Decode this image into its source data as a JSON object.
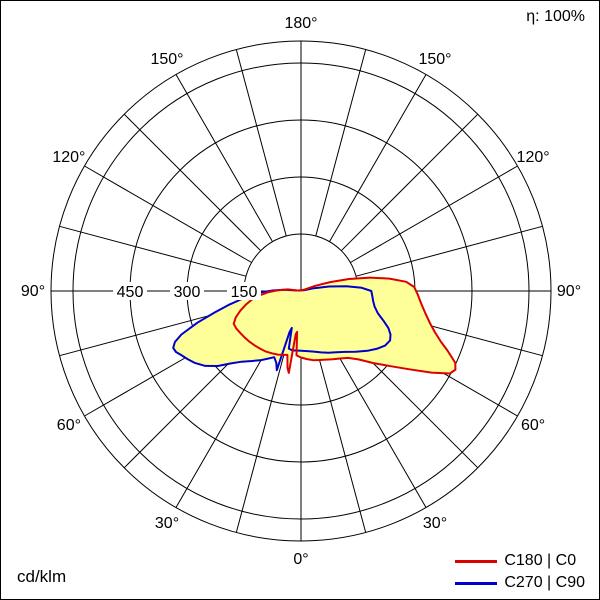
{
  "meta": {
    "efficiency_label": "η: 100%",
    "unit_label": "cd/klm"
  },
  "legend": {
    "entries": [
      {
        "label": "C180 | C0",
        "color": "#dd0000"
      },
      {
        "label": "C270 | C90",
        "color": "#0000cc"
      }
    ]
  },
  "chart_data": {
    "type": "polar_luminous_intensity",
    "title": "Luminous intensity distribution curve (polar)",
    "unit": "cd/klm",
    "efficiency": "100%",
    "angle_label_step_deg": 30,
    "angle_tick_step_deg": 15,
    "angle_labels": [
      "0°",
      "30°",
      "60°",
      "90°",
      "120°",
      "150°",
      "180°"
    ],
    "radial_ticks": [
      150,
      300,
      450,
      600
    ],
    "radial_tick_labels": [
      "150",
      "300",
      "450"
    ],
    "grid_color": "#000000",
    "fill_color": "#ffff99",
    "point_format": "[gamma_deg, cd_per_klm] (0 = nadir, negative = left half, positive = right half)",
    "series": [
      {
        "name": "C180 | C0",
        "color": "#dd0000",
        "points": [
          [
            -102,
            5
          ],
          [
            -97,
            35
          ],
          [
            -92,
            60
          ],
          [
            -88,
            85
          ],
          [
            -84,
            110
          ],
          [
            -80,
            132
          ],
          [
            -76,
            150
          ],
          [
            -72,
            168
          ],
          [
            -68,
            185
          ],
          [
            -64,
            197
          ],
          [
            -60,
            197
          ],
          [
            -55,
            194
          ],
          [
            -50,
            192
          ],
          [
            -45,
            190
          ],
          [
            -40,
            188
          ],
          [
            -35,
            186
          ],
          [
            -30,
            184
          ],
          [
            -25,
            181
          ],
          [
            -20,
            178
          ],
          [
            -16,
            175
          ],
          [
            -12,
            172
          ],
          [
            -10,
            205
          ],
          [
            -8.5,
            218
          ],
          [
            -7,
            115
          ],
          [
            -5.5,
            108
          ],
          [
            -4,
            170
          ],
          [
            0,
            175
          ],
          [
            5,
            180
          ],
          [
            10,
            185
          ],
          [
            15,
            188
          ],
          [
            20,
            192
          ],
          [
            25,
            198
          ],
          [
            30,
            205
          ],
          [
            35,
            215
          ],
          [
            40,
            235
          ],
          [
            45,
            268
          ],
          [
            50,
            308
          ],
          [
            54,
            350
          ],
          [
            58,
            405
          ],
          [
            61,
            448
          ],
          [
            63,
            456
          ],
          [
            65,
            448
          ],
          [
            68,
            415
          ],
          [
            70,
            392
          ],
          [
            73,
            368
          ],
          [
            76,
            350
          ],
          [
            80,
            332
          ],
          [
            84,
            318
          ],
          [
            88,
            308
          ],
          [
            92,
            298
          ],
          [
            95,
            278
          ],
          [
            98,
            235
          ],
          [
            101,
            185
          ],
          [
            104,
            130
          ],
          [
            107,
            80
          ],
          [
            110,
            40
          ],
          [
            112,
            10
          ]
        ]
      },
      {
        "name": "C270 | C90",
        "color": "#0000cc",
        "points": [
          [
            -98,
            10
          ],
          [
            -94,
            45
          ],
          [
            -91,
            75
          ],
          [
            -88,
            105
          ],
          [
            -85,
            130
          ],
          [
            -82,
            160
          ],
          [
            -79,
            195
          ],
          [
            -76,
            235
          ],
          [
            -73,
            285
          ],
          [
            -70,
            335
          ],
          [
            -68,
            358
          ],
          [
            -66,
            368
          ],
          [
            -64,
            366
          ],
          [
            -62,
            358
          ],
          [
            -59,
            348
          ],
          [
            -56,
            338
          ],
          [
            -52,
            320
          ],
          [
            -48,
            295
          ],
          [
            -44,
            265
          ],
          [
            -40,
            243
          ],
          [
            -35,
            225
          ],
          [
            -30,
            210
          ],
          [
            -26,
            198
          ],
          [
            -22,
            188
          ],
          [
            -19,
            200
          ],
          [
            -17,
            218
          ],
          [
            -15.5,
            112
          ],
          [
            -14,
            100
          ],
          [
            -12,
            155
          ],
          [
            -8,
            158
          ],
          [
            -4,
            157
          ],
          [
            0,
            157
          ],
          [
            6,
            159
          ],
          [
            12,
            163
          ],
          [
            18,
            170
          ],
          [
            24,
            178
          ],
          [
            30,
            186
          ],
          [
            36,
            198
          ],
          [
            42,
            215
          ],
          [
            48,
            235
          ],
          [
            53,
            252
          ],
          [
            57,
            264
          ],
          [
            61,
            268
          ],
          [
            64,
            262
          ],
          [
            67,
            250
          ],
          [
            70,
            232
          ],
          [
            74,
            210
          ],
          [
            78,
            198
          ],
          [
            82,
            192
          ],
          [
            86,
            188
          ],
          [
            90,
            185
          ],
          [
            93,
            160
          ],
          [
            96,
            120
          ],
          [
            99,
            75
          ],
          [
            102,
            35
          ],
          [
            104,
            8
          ]
        ]
      }
    ]
  }
}
